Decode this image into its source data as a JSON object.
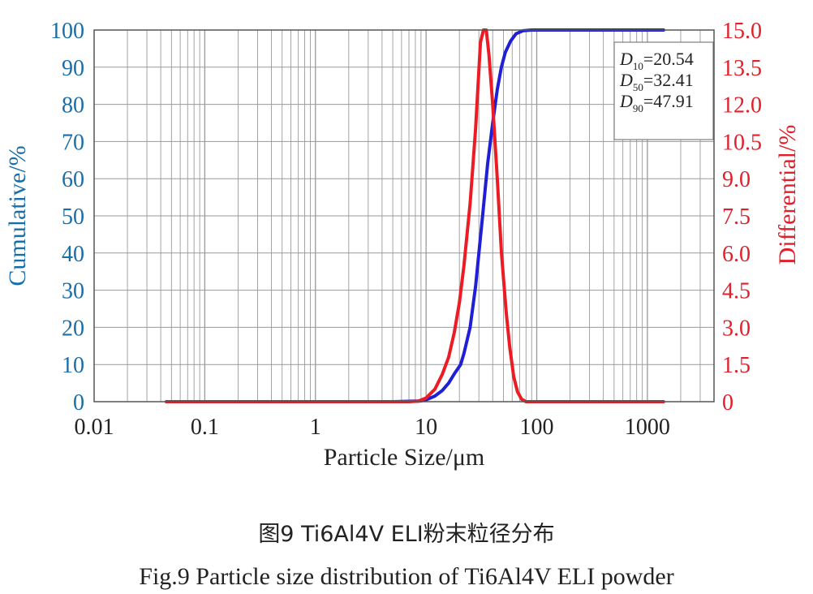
{
  "chart_data": {
    "type": "line",
    "xscale": "log",
    "xlabel": "Particle Size/μm",
    "ylabel_left": "Cumulative/%",
    "ylabel_right": "Differential/%",
    "xlim": [
      0.01,
      4000
    ],
    "ylim_left": [
      0,
      100
    ],
    "ylim_right": [
      0,
      15
    ],
    "x_ticks": [
      0.01,
      0.1,
      1,
      10,
      100,
      1000
    ],
    "x_tick_labels": [
      "0.01",
      "0.1",
      "1",
      "10",
      "100",
      "1000"
    ],
    "y_left_ticks": [
      0,
      10,
      20,
      30,
      40,
      50,
      60,
      70,
      80,
      90,
      100
    ],
    "y_left_tick_labels": [
      "0",
      "10",
      "20",
      "30",
      "40",
      "50",
      "60",
      "70",
      "80",
      "90",
      "100"
    ],
    "y_right_ticks": [
      0,
      1.5,
      3,
      4.5,
      6,
      7.5,
      9,
      10.5,
      12,
      13.5,
      15
    ],
    "y_right_tick_labels": [
      "0",
      "1.5",
      "3.0",
      "4.5",
      "6.0",
      "7.5",
      "9.0",
      "10.5",
      "12.0",
      "13.5",
      "15.0"
    ],
    "grid": true,
    "series": [
      {
        "name": "Cumulative",
        "axis": "left",
        "color": "#1f1fd6",
        "points": [
          [
            0.045,
            0
          ],
          [
            1,
            0
          ],
          [
            5,
            0
          ],
          [
            9,
            0.2
          ],
          [
            10,
            0.5
          ],
          [
            12,
            1.5
          ],
          [
            14,
            3
          ],
          [
            16,
            5
          ],
          [
            18,
            7.5
          ],
          [
            20.54,
            10
          ],
          [
            22,
            13
          ],
          [
            25,
            20
          ],
          [
            28,
            31
          ],
          [
            32.41,
            50
          ],
          [
            36,
            64
          ],
          [
            40,
            75
          ],
          [
            44,
            84
          ],
          [
            47.91,
            90
          ],
          [
            52,
            94
          ],
          [
            58,
            97
          ],
          [
            65,
            99
          ],
          [
            75,
            99.8
          ],
          [
            90,
            100
          ],
          [
            200,
            100
          ],
          [
            1400,
            100
          ]
        ]
      },
      {
        "name": "Differential",
        "axis": "right",
        "color": "#ec1c24",
        "points": [
          [
            0.045,
            0
          ],
          [
            1,
            0
          ],
          [
            7,
            0
          ],
          [
            8.5,
            0.02
          ],
          [
            10,
            0.15
          ],
          [
            12,
            0.5
          ],
          [
            14,
            1.1
          ],
          [
            16,
            1.8
          ],
          [
            18,
            2.8
          ],
          [
            20,
            4.0
          ],
          [
            22,
            5.5
          ],
          [
            25,
            8.0
          ],
          [
            28,
            11.0
          ],
          [
            31,
            14.5
          ],
          [
            33,
            15.0
          ],
          [
            35,
            15.0
          ],
          [
            37,
            14.0
          ],
          [
            40,
            12.0
          ],
          [
            44,
            9.0
          ],
          [
            48,
            6.0
          ],
          [
            53,
            3.6
          ],
          [
            57,
            2.2
          ],
          [
            62,
            1.0
          ],
          [
            67,
            0.4
          ],
          [
            73,
            0.1
          ],
          [
            80,
            0
          ],
          [
            200,
            0
          ],
          [
            1400,
            0
          ]
        ]
      }
    ],
    "legend": "top-right",
    "annotations": [
      {
        "var": "D",
        "sub": "10",
        "value": "=20.54"
      },
      {
        "var": "D",
        "sub": "50",
        "value": "=32.41"
      },
      {
        "var": "D",
        "sub": "90",
        "value": "=47.91"
      }
    ]
  },
  "caption": {
    "cn": "图9  Ti6Al4V ELI粉末粒径分布",
    "en": "Fig.9  Particle size distribution of Ti6Al4V ELI powder"
  },
  "colors": {
    "left_axis_text": "#1a6ea8",
    "right_axis_text": "#e0202a",
    "grid": "#9a9a9a"
  }
}
